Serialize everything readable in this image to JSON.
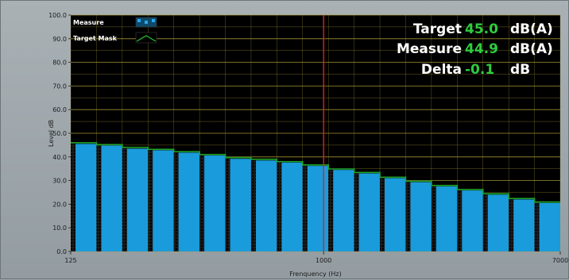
{
  "chart_data": {
    "type": "bar",
    "xlabel": "Frenquency (Hz)",
    "ylabel": "Level dB",
    "ylim": [
      0,
      100
    ],
    "yticks": [
      "0.0",
      "10.0",
      "20.0",
      "30.0",
      "40.0",
      "50.0",
      "60.0",
      "70.0",
      "80.0",
      "90.0",
      "100.0"
    ],
    "xticks": [
      "125",
      "1000",
      "7000"
    ],
    "x_scale": "log",
    "xlim": [
      125,
      7000
    ],
    "grid": true,
    "marker_frequency": 1000,
    "legend_position": "top-left",
    "series": [
      {
        "name": "Measure",
        "type": "bar",
        "color": "#1a9bdc",
        "values": [
          45.5,
          44.8,
          43.5,
          42.8,
          41.8,
          40.6,
          39.2,
          38.5,
          37.6,
          36.2,
          34.5,
          33.0,
          31.0,
          29.3,
          27.5,
          25.8,
          24.0,
          22.0,
          20.5
        ]
      },
      {
        "name": "Target Mask",
        "type": "line",
        "color": "#1fa52a",
        "values": [
          46.0,
          45.2,
          44.0,
          43.2,
          42.2,
          41.0,
          39.7,
          39.0,
          38.0,
          36.6,
          34.9,
          33.4,
          31.4,
          29.7,
          27.9,
          26.2,
          24.4,
          22.4,
          20.9
        ]
      }
    ]
  },
  "readout": {
    "target_label": "Target",
    "target_value": "45.0",
    "measure_label": "Measure",
    "measure_value": "44.9",
    "delta_label": "Delta",
    "delta_value": "-0.1",
    "unit_a": "dB(A)",
    "unit_delta": "dB"
  },
  "colors": {
    "plot_background": "#000000",
    "grid": "#b0a23a",
    "bar": "#1a9bdc",
    "mask_line": "#1fa52a",
    "marker": "#e02020",
    "readout_value": "#2ecc40",
    "stipple": "#000000"
  }
}
